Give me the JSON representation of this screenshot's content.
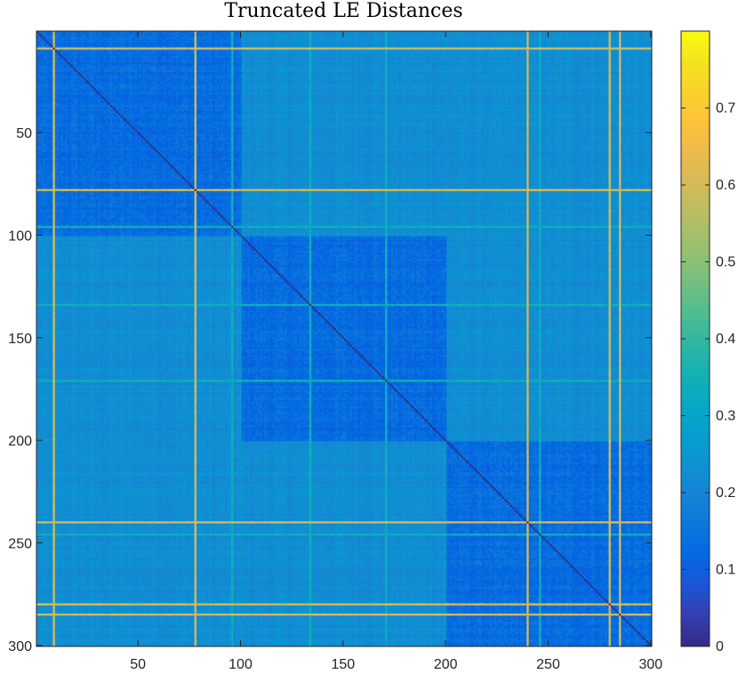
{
  "chart_data": {
    "type": "heatmap",
    "title": "Truncated LE Distances",
    "size": 300,
    "x_ticks": [
      50,
      100,
      150,
      200,
      250,
      300
    ],
    "y_ticks": [
      50,
      100,
      150,
      200,
      250,
      300
    ],
    "xlim": [
      1,
      300
    ],
    "ylim": [
      1,
      300
    ],
    "y_direction": "reverse",
    "blocks": [
      [
        1,
        100
      ],
      [
        101,
        200
      ],
      [
        201,
        300
      ]
    ],
    "outlier_indices": [
      9,
      78,
      240,
      280,
      285
    ],
    "minor_bright_indices": [
      96,
      134,
      171,
      246
    ],
    "value_range": [
      0,
      0.8
    ],
    "off_block_value": 0.22,
    "in_block_value": 0.12,
    "diagonal_value": 0,
    "outlier_value": 0.6,
    "colormap": "parula",
    "colorbar": {
      "range": [
        0,
        0.8
      ],
      "ticks": [
        0,
        0.1,
        0.2,
        0.3,
        0.4,
        0.5,
        0.6,
        0.7
      ],
      "labels": [
        "0",
        "0.1",
        "0.2",
        "0.3",
        "0.4",
        "0.5",
        "0.6",
        "0.7"
      ]
    }
  }
}
